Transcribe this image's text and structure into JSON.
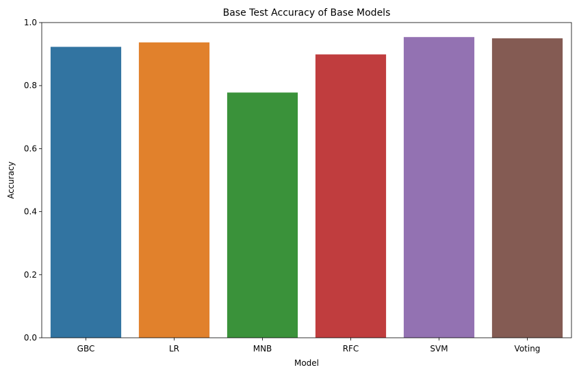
{
  "chart_data": {
    "type": "bar",
    "title": "Base Test Accuracy of Base Models",
    "xlabel": "Model",
    "ylabel": "Accuracy",
    "categories": [
      "GBC",
      "LR",
      "MNB",
      "RFC",
      "SVM",
      "Voting"
    ],
    "values": [
      0.923,
      0.937,
      0.778,
      0.899,
      0.954,
      0.95
    ],
    "colors": [
      "#3274a1",
      "#e1812c",
      "#3a923a",
      "#c03d3e",
      "#9372b2",
      "#845b53"
    ],
    "ylim": [
      0,
      1.0
    ],
    "yticks": [
      0.0,
      0.2,
      0.4,
      0.6,
      0.8,
      1.0
    ],
    "ytick_labels": [
      "0.0",
      "0.2",
      "0.4",
      "0.6",
      "0.8",
      "1.0"
    ],
    "grid": false,
    "legend": "none"
  }
}
